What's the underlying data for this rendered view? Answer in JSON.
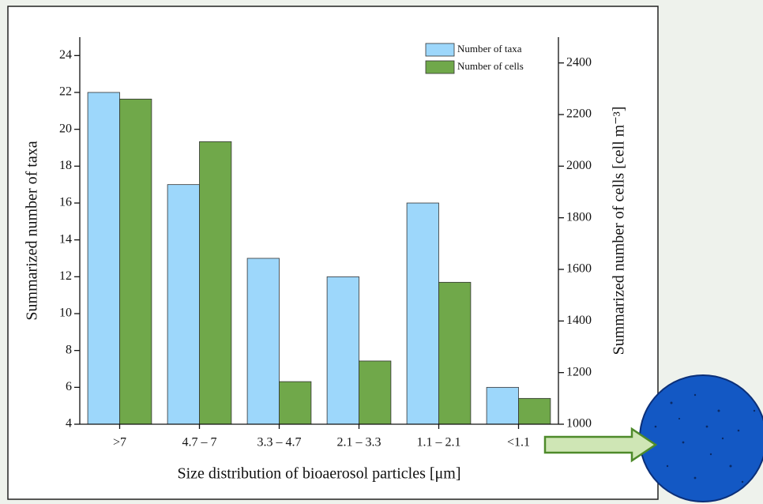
{
  "chart_data": {
    "type": "bar",
    "x_label": "Size distribution of bioaerosol particles [μm]",
    "y_label": "Summarized number of taxa",
    "y2_label": "Summarized number of cells [cell m⁻³]",
    "categories": [
      ">7",
      "4.7 – 7",
      "3.3 – 4.7",
      "2.1 – 3.3",
      "1.1 – 2.1",
      "<1.1"
    ],
    "series": [
      {
        "name": "Number of taxa",
        "color": "#9dd7fb",
        "values": [
          22,
          17,
          13,
          12,
          16,
          6
        ]
      },
      {
        "name": "Number of cells",
        "color": "#70a84a",
        "axis": "y2",
        "values": [
          2260,
          2095,
          1165,
          1245,
          1550,
          1100
        ]
      }
    ],
    "ylim": [
      4,
      25
    ],
    "yticks": [
      4,
      6,
      8,
      10,
      12,
      14,
      16,
      18,
      20,
      22,
      24
    ],
    "y2lim": [
      1000,
      2500
    ],
    "y2ticks": [
      1000,
      1200,
      1400,
      1600,
      1800,
      2000,
      2200,
      2400
    ],
    "legend": "upper right",
    "grid": false
  }
}
